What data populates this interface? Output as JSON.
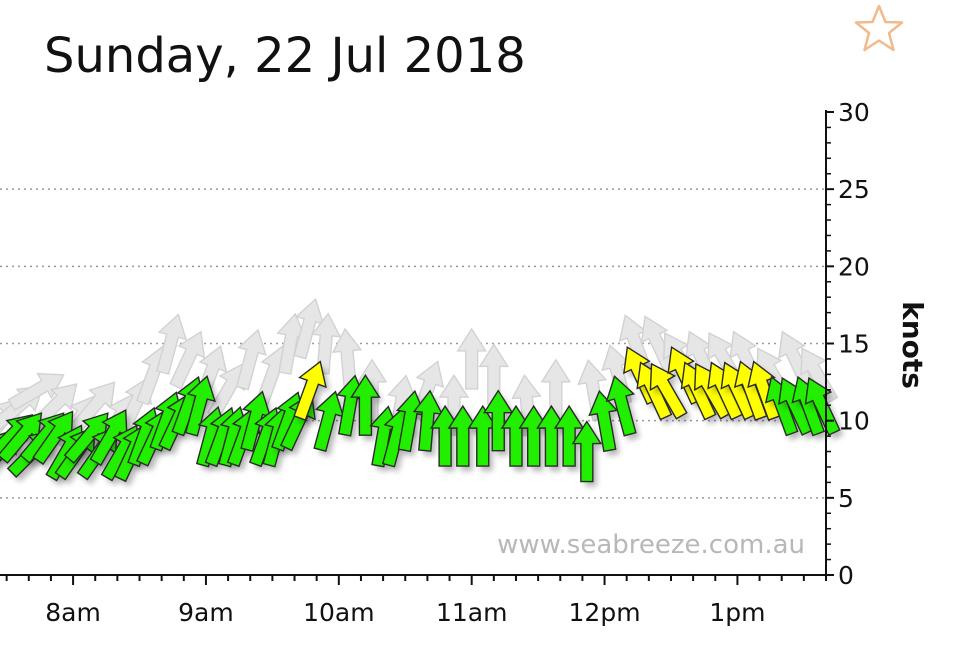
{
  "header": {
    "title": "Sunday, 22 Jul 2018"
  },
  "watermark": "www.seabreeze.com.au",
  "favorite": {
    "icon": "star-icon",
    "color": "#f2b98a"
  },
  "colors": {
    "light": "#22ee00",
    "moderate": "#ffff00",
    "observed_faded": "#e6e6e6",
    "arrow_outline": "#2a2a2a",
    "grid": "#999999"
  },
  "chart_data": {
    "type": "scatter",
    "title": "Sunday, 22 Jul 2018",
    "xlabel": "",
    "ylabel": "knots",
    "ylim": [
      0,
      30
    ],
    "xlim": [
      "07:27",
      "13:40"
    ],
    "yticks": [
      0,
      5,
      10,
      15,
      20,
      25,
      30
    ],
    "xticks": [
      "8am",
      "9am",
      "10am",
      "11am",
      "12pm",
      "1pm"
    ],
    "xtick_times": [
      "08:00",
      "09:00",
      "10:00",
      "11:00",
      "12:00",
      "13:00"
    ],
    "grid": "horizontal dotted",
    "series": [
      {
        "role": "faded",
        "color": "#e6e6e6",
        "points": [
          {
            "t": "07:28",
            "v": 10,
            "dir": 40
          },
          {
            "t": "07:36",
            "v": 11,
            "dir": 50
          },
          {
            "t": "07:44",
            "v": 12,
            "dir": 60
          },
          {
            "t": "07:52",
            "v": 11,
            "dir": 45
          },
          {
            "t": "08:02",
            "v": 10,
            "dir": 35
          },
          {
            "t": "08:10",
            "v": 11,
            "dir": 40
          },
          {
            "t": "08:20",
            "v": 10,
            "dir": 30
          },
          {
            "t": "08:28",
            "v": 11,
            "dir": 25
          },
          {
            "t": "08:36",
            "v": 13,
            "dir": 20
          },
          {
            "t": "08:44",
            "v": 15,
            "dir": 15
          },
          {
            "t": "08:52",
            "v": 14,
            "dir": 25
          },
          {
            "t": "09:02",
            "v": 13,
            "dir": 20
          },
          {
            "t": "09:10",
            "v": 12,
            "dir": 30
          },
          {
            "t": "09:20",
            "v": 14,
            "dir": 15
          },
          {
            "t": "09:30",
            "v": 13,
            "dir": 20
          },
          {
            "t": "09:38",
            "v": 15,
            "dir": 10
          },
          {
            "t": "09:46",
            "v": 16,
            "dir": 15
          },
          {
            "t": "09:54",
            "v": 15,
            "dir": 5
          },
          {
            "t": "10:04",
            "v": 14,
            "dir": -5
          },
          {
            "t": "10:15",
            "v": 12,
            "dir": 0
          },
          {
            "t": "10:28",
            "v": 11,
            "dir": 10
          },
          {
            "t": "10:40",
            "v": 12,
            "dir": 20
          },
          {
            "t": "10:52",
            "v": 11,
            "dir": 0
          },
          {
            "t": "11:00",
            "v": 14,
            "dir": 0
          },
          {
            "t": "11:10",
            "v": 13,
            "dir": 0
          },
          {
            "t": "11:25",
            "v": 11,
            "dir": -5
          },
          {
            "t": "11:38",
            "v": 12,
            "dir": 0
          },
          {
            "t": "11:55",
            "v": 12,
            "dir": -10
          },
          {
            "t": "12:06",
            "v": 13,
            "dir": -15
          },
          {
            "t": "12:14",
            "v": 15,
            "dir": -20
          },
          {
            "t": "12:24",
            "v": 15,
            "dir": -25
          },
          {
            "t": "12:34",
            "v": 14,
            "dir": -30
          },
          {
            "t": "12:44",
            "v": 14,
            "dir": -25
          },
          {
            "t": "12:54",
            "v": 14,
            "dir": -30
          },
          {
            "t": "13:04",
            "v": 14,
            "dir": -25
          },
          {
            "t": "13:16",
            "v": 13,
            "dir": -30
          },
          {
            "t": "13:26",
            "v": 14,
            "dir": -25
          },
          {
            "t": "13:36",
            "v": 13,
            "dir": -30
          }
        ]
      },
      {
        "role": "primary",
        "points": [
          {
            "t": "07:27",
            "v": 8,
            "dir": 40,
            "c": "g"
          },
          {
            "t": "07:32",
            "v": 9,
            "dir": 45,
            "c": "g"
          },
          {
            "t": "07:37",
            "v": 9,
            "dir": 40,
            "c": "g"
          },
          {
            "t": "07:42",
            "v": 8,
            "dir": 45,
            "c": "g"
          },
          {
            "t": "07:47",
            "v": 9,
            "dir": 40,
            "c": "g"
          },
          {
            "t": "07:52",
            "v": 9,
            "dir": 35,
            "c": "g"
          },
          {
            "t": "07:57",
            "v": 8,
            "dir": 30,
            "c": "g"
          },
          {
            "t": "08:02",
            "v": 8,
            "dir": 35,
            "c": "g"
          },
          {
            "t": "08:07",
            "v": 9,
            "dir": 40,
            "c": "g"
          },
          {
            "t": "08:12",
            "v": 8,
            "dir": 35,
            "c": "g"
          },
          {
            "t": "08:17",
            "v": 9,
            "dir": 30,
            "c": "g"
          },
          {
            "t": "08:22",
            "v": 8,
            "dir": 30,
            "c": "g"
          },
          {
            "t": "08:27",
            "v": 8,
            "dir": 25,
            "c": "g"
          },
          {
            "t": "08:32",
            "v": 9,
            "dir": 20,
            "c": "g"
          },
          {
            "t": "08:37",
            "v": 9,
            "dir": 25,
            "c": "g"
          },
          {
            "t": "08:42",
            "v": 10,
            "dir": 20,
            "c": "g"
          },
          {
            "t": "08:47",
            "v": 10,
            "dir": 25,
            "c": "g"
          },
          {
            "t": "08:52",
            "v": 11,
            "dir": 20,
            "c": "g"
          },
          {
            "t": "08:57",
            "v": 11,
            "dir": 15,
            "c": "g"
          },
          {
            "t": "09:02",
            "v": 9,
            "dir": 15,
            "c": "g"
          },
          {
            "t": "09:07",
            "v": 9,
            "dir": 20,
            "c": "g"
          },
          {
            "t": "09:12",
            "v": 9,
            "dir": 15,
            "c": "g"
          },
          {
            "t": "09:17",
            "v": 9,
            "dir": 20,
            "c": "g"
          },
          {
            "t": "09:22",
            "v": 10,
            "dir": 15,
            "c": "g"
          },
          {
            "t": "09:27",
            "v": 9,
            "dir": 20,
            "c": "g"
          },
          {
            "t": "09:32",
            "v": 9,
            "dir": 15,
            "c": "g"
          },
          {
            "t": "09:37",
            "v": 10,
            "dir": 20,
            "c": "g"
          },
          {
            "t": "09:42",
            "v": 10,
            "dir": 25,
            "c": "g"
          },
          {
            "t": "09:47",
            "v": 12,
            "dir": 20,
            "c": "y"
          },
          {
            "t": "09:55",
            "v": 10,
            "dir": 15,
            "c": "g"
          },
          {
            "t": "10:05",
            "v": 11,
            "dir": 10,
            "c": "g"
          },
          {
            "t": "10:12",
            "v": 11,
            "dir": 0,
            "c": "g"
          },
          {
            "t": "10:20",
            "v": 9,
            "dir": 10,
            "c": "g"
          },
          {
            "t": "10:26",
            "v": 9,
            "dir": 15,
            "c": "g"
          },
          {
            "t": "10:32",
            "v": 10,
            "dir": 10,
            "c": "g"
          },
          {
            "t": "10:40",
            "v": 10,
            "dir": 5,
            "c": "g"
          },
          {
            "t": "10:48",
            "v": 9,
            "dir": 0,
            "c": "g"
          },
          {
            "t": "10:56",
            "v": 9,
            "dir": 0,
            "c": "g"
          },
          {
            "t": "11:05",
            "v": 9,
            "dir": 0,
            "c": "g"
          },
          {
            "t": "11:12",
            "v": 10,
            "dir": 0,
            "c": "g"
          },
          {
            "t": "11:20",
            "v": 9,
            "dir": 0,
            "c": "g"
          },
          {
            "t": "11:28",
            "v": 9,
            "dir": 0,
            "c": "g"
          },
          {
            "t": "11:36",
            "v": 9,
            "dir": 0,
            "c": "g"
          },
          {
            "t": "11:44",
            "v": 9,
            "dir": 0,
            "c": "g"
          },
          {
            "t": "11:52",
            "v": 8,
            "dir": 0,
            "c": "g"
          },
          {
            "t": "12:00",
            "v": 10,
            "dir": -10,
            "c": "g"
          },
          {
            "t": "12:08",
            "v": 11,
            "dir": -15,
            "c": "g"
          },
          {
            "t": "12:16",
            "v": 13,
            "dir": -25,
            "c": "y"
          },
          {
            "t": "12:22",
            "v": 12,
            "dir": -25,
            "c": "y"
          },
          {
            "t": "12:28",
            "v": 12,
            "dir": -30,
            "c": "y"
          },
          {
            "t": "12:36",
            "v": 13,
            "dir": -25,
            "c": "y"
          },
          {
            "t": "12:42",
            "v": 12,
            "dir": -25,
            "c": "y"
          },
          {
            "t": "12:48",
            "v": 12,
            "dir": -30,
            "c": "y"
          },
          {
            "t": "12:54",
            "v": 12,
            "dir": -25,
            "c": "y"
          },
          {
            "t": "13:00",
            "v": 12,
            "dir": -25,
            "c": "y"
          },
          {
            "t": "13:06",
            "v": 12,
            "dir": -20,
            "c": "y"
          },
          {
            "t": "13:12",
            "v": 12,
            "dir": -20,
            "c": "y"
          },
          {
            "t": "13:20",
            "v": 11,
            "dir": -20,
            "c": "g"
          },
          {
            "t": "13:26",
            "v": 11,
            "dir": -25,
            "c": "g"
          },
          {
            "t": "13:32",
            "v": 11,
            "dir": -20,
            "c": "g"
          },
          {
            "t": "13:38",
            "v": 11,
            "dir": -25,
            "c": "g"
          }
        ]
      }
    ]
  }
}
